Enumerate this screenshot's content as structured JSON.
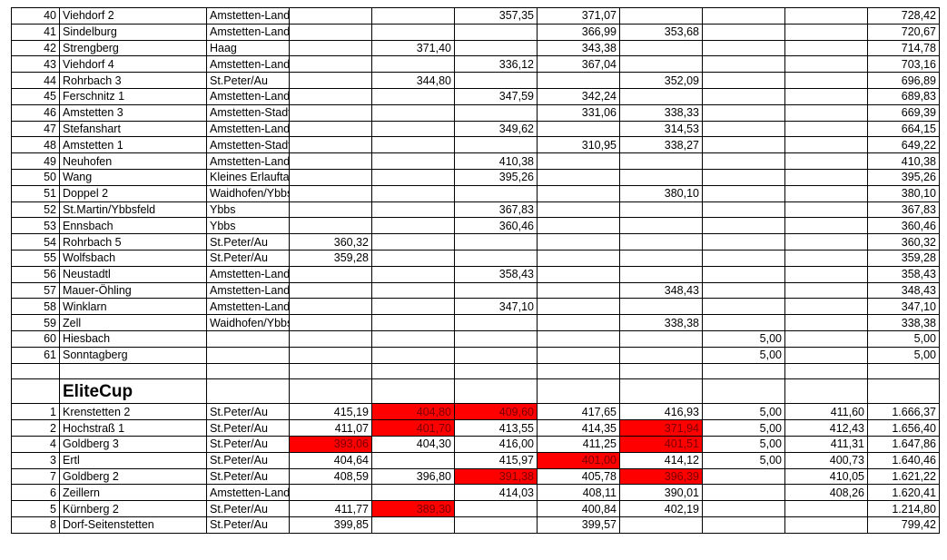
{
  "top_rows": [
    {
      "rank": "40",
      "name": "Viehdorf 2",
      "region": "Amstetten-Land",
      "c1": "",
      "c2": "",
      "c3": "357,35",
      "c4": "371,07",
      "c5": "",
      "c6": "",
      "c7": "",
      "total": "728,42"
    },
    {
      "rank": "41",
      "name": "Sindelburg",
      "region": "Amstetten-Land",
      "c1": "",
      "c2": "",
      "c3": "",
      "c4": "366,99",
      "c5": "353,68",
      "c6": "",
      "c7": "",
      "total": "720,67"
    },
    {
      "rank": "42",
      "name": "Strengberg",
      "region": "Haag",
      "c1": "",
      "c2": "371,40",
      "c3": "",
      "c4": "343,38",
      "c5": "",
      "c6": "",
      "c7": "",
      "total": "714,78"
    },
    {
      "rank": "43",
      "name": "Viehdorf 4",
      "region": "Amstetten-Land",
      "c1": "",
      "c2": "",
      "c3": "336,12",
      "c4": "367,04",
      "c5": "",
      "c6": "",
      "c7": "",
      "total": "703,16"
    },
    {
      "rank": "44",
      "name": "Rohrbach 3",
      "region": "St.Peter/Au",
      "c1": "",
      "c2": "344,80",
      "c3": "",
      "c4": "",
      "c5": "352,09",
      "c6": "",
      "c7": "",
      "total": "696,89"
    },
    {
      "rank": "45",
      "name": "Ferschnitz 1",
      "region": "Amstetten-Land",
      "c1": "",
      "c2": "",
      "c3": "347,59",
      "c4": "342,24",
      "c5": "",
      "c6": "",
      "c7": "",
      "total": "689,83"
    },
    {
      "rank": "46",
      "name": "Amstetten 3",
      "region": "Amstetten-Stadt",
      "c1": "",
      "c2": "",
      "c3": "",
      "c4": "331,06",
      "c5": "338,33",
      "c6": "",
      "c7": "",
      "total": "669,39"
    },
    {
      "rank": "47",
      "name": "Stefanshart",
      "region": "Amstetten-Land",
      "c1": "",
      "c2": "",
      "c3": "349,62",
      "c4": "",
      "c5": "314,53",
      "c6": "",
      "c7": "",
      "total": "664,15"
    },
    {
      "rank": "48",
      "name": "Amstetten 1",
      "region": "Amstetten-Stadt",
      "c1": "",
      "c2": "",
      "c3": "",
      "c4": "310,95",
      "c5": "338,27",
      "c6": "",
      "c7": "",
      "total": "649,22"
    },
    {
      "rank": "49",
      "name": "Neuhofen",
      "region": "Amstetten-Land",
      "c1": "",
      "c2": "",
      "c3": "410,38",
      "c4": "",
      "c5": "",
      "c6": "",
      "c7": "",
      "total": "410,38"
    },
    {
      "rank": "50",
      "name": "Wang",
      "region": "Kleines Erlauftal",
      "c1": "",
      "c2": "",
      "c3": "395,26",
      "c4": "",
      "c5": "",
      "c6": "",
      "c7": "",
      "total": "395,26"
    },
    {
      "rank": "51",
      "name": "Doppel 2",
      "region": "Waidhofen/Ybbs-Land",
      "c1": "",
      "c2": "",
      "c3": "",
      "c4": "",
      "c5": "380,10",
      "c6": "",
      "c7": "",
      "total": "380,10"
    },
    {
      "rank": "52",
      "name": "St.Martin/Ybbsfeld",
      "region": "Ybbs",
      "c1": "",
      "c2": "",
      "c3": "367,83",
      "c4": "",
      "c5": "",
      "c6": "",
      "c7": "",
      "total": "367,83"
    },
    {
      "rank": "53",
      "name": "Ennsbach",
      "region": "Ybbs",
      "c1": "",
      "c2": "",
      "c3": "360,46",
      "c4": "",
      "c5": "",
      "c6": "",
      "c7": "",
      "total": "360,46"
    },
    {
      "rank": "54",
      "name": "Rohrbach 5",
      "region": "St.Peter/Au",
      "c1": "360,32",
      "c2": "",
      "c3": "",
      "c4": "",
      "c5": "",
      "c6": "",
      "c7": "",
      "total": "360,32"
    },
    {
      "rank": "55",
      "name": "Wolfsbach",
      "region": "St.Peter/Au",
      "c1": "359,28",
      "c2": "",
      "c3": "",
      "c4": "",
      "c5": "",
      "c6": "",
      "c7": "",
      "total": "359,28"
    },
    {
      "rank": "56",
      "name": "Neustadtl",
      "region": "Amstetten-Land",
      "c1": "",
      "c2": "",
      "c3": "358,43",
      "c4": "",
      "c5": "",
      "c6": "",
      "c7": "",
      "total": "358,43"
    },
    {
      "rank": "57",
      "name": "Mauer-Öhling",
      "region": "Amstetten-Land",
      "c1": "",
      "c2": "",
      "c3": "",
      "c4": "",
      "c5": "348,43",
      "c6": "",
      "c7": "",
      "total": "348,43"
    },
    {
      "rank": "58",
      "name": "Winklarn",
      "region": "Amstetten-Land",
      "c1": "",
      "c2": "",
      "c3": "347,10",
      "c4": "",
      "c5": "",
      "c6": "",
      "c7": "",
      "total": "347,10"
    },
    {
      "rank": "59",
      "name": "Zell",
      "region": "Waidhofen/Ybbs-Stadt",
      "c1": "",
      "c2": "",
      "c3": "",
      "c4": "",
      "c5": "338,38",
      "c6": "",
      "c7": "",
      "total": "338,38"
    },
    {
      "rank": "60",
      "name": "Hiesbach",
      "region": "",
      "c1": "",
      "c2": "",
      "c3": "",
      "c4": "",
      "c5": "",
      "c6": "5,00",
      "c7": "",
      "total": "5,00"
    },
    {
      "rank": "61",
      "name": "Sonntagberg",
      "region": "",
      "c1": "",
      "c2": "",
      "c3": "",
      "c4": "",
      "c5": "",
      "c6": "5,00",
      "c7": "",
      "total": "5,00"
    }
  ],
  "section_title": "EliteCup",
  "elite_rows": [
    {
      "rank": "1",
      "name": "Krenstetten 2",
      "region": "St.Peter/Au",
      "c1": "415,19",
      "c2": "404,80",
      "c3": "409,60",
      "c4": "417,65",
      "c5": "416,93",
      "c6": "5,00",
      "c7": "411,60",
      "total": "1.666,37",
      "red": [
        "c2",
        "c3"
      ]
    },
    {
      "rank": "2",
      "name": "Hochstraß 1",
      "region": "St.Peter/Au",
      "c1": "411,07",
      "c2": "401,70",
      "c3": "413,55",
      "c4": "414,35",
      "c5": "371,94",
      "c6": "5,00",
      "c7": "412,43",
      "total": "1.656,40",
      "red": [
        "c2",
        "c5"
      ]
    },
    {
      "rank": "4",
      "name": "Goldberg 3",
      "region": "St.Peter/Au",
      "c1": "393,06",
      "c2": "404,30",
      "c3": "416,00",
      "c4": "411,25",
      "c5": "401,51",
      "c6": "5,00",
      "c7": "411,31",
      "total": "1.647,86",
      "red": [
        "c1",
        "c5"
      ]
    },
    {
      "rank": "3",
      "name": "Ertl",
      "region": "St.Peter/Au",
      "c1": "404,64",
      "c2": "",
      "c3": "415,97",
      "c4": "401,00",
      "c5": "414,12",
      "c6": "5,00",
      "c7": "400,73",
      "total": "1.640,46",
      "red": [
        "c4"
      ]
    },
    {
      "rank": "7",
      "name": "Goldberg 2",
      "region": "St.Peter/Au",
      "c1": "408,59",
      "c2": "396,80",
      "c3": "391,38",
      "c4": "405,78",
      "c5": "396,39",
      "c6": "",
      "c7": "410,05",
      "total": "1.621,22",
      "red": [
        "c3",
        "c5"
      ]
    },
    {
      "rank": "6",
      "name": "Zeillern",
      "region": "Amstetten-Land",
      "c1": "",
      "c2": "",
      "c3": "414,03",
      "c4": "408,11",
      "c5": "390,01",
      "c6": "",
      "c7": "408,26",
      "total": "1.620,41",
      "red": []
    },
    {
      "rank": "5",
      "name": "Kürnberg 2",
      "region": "St.Peter/Au",
      "c1": "411,77",
      "c2": "389,30",
      "c3": "",
      "c4": "400,84",
      "c5": "402,19",
      "c6": "",
      "c7": "",
      "total": "1.214,80",
      "red": [
        "c2"
      ]
    },
    {
      "rank": "8",
      "name": "Dorf-Seitenstetten",
      "region": "St.Peter/Au",
      "c1": "399,85",
      "c2": "",
      "c3": "",
      "c4": "399,57",
      "c5": "",
      "c6": "",
      "c7": "",
      "total": "799,42",
      "red": []
    }
  ],
  "colors": {
    "highlight": "#ff0000",
    "highlight_text": "#7a0000",
    "grid": "#000000"
  }
}
